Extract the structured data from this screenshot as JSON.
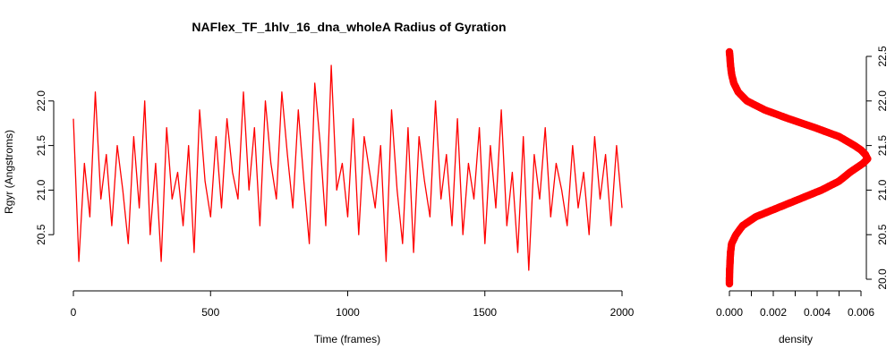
{
  "chart_data": [
    {
      "type": "line",
      "title": "NAFlex_TF_1hlv_16_dna_wholeA Radius of Gyration",
      "xlabel": "Time (frames)",
      "ylabel": "Rgyr (Angstroms)",
      "xlim": [
        0,
        2000
      ],
      "ylim": [
        20.0,
        22.5
      ],
      "xticks": [
        "0",
        "500",
        "1000",
        "1500",
        "2000"
      ],
      "yticks": [
        "20.5",
        "21.0",
        "21.5",
        "22.0"
      ],
      "series": [
        {
          "color": "#ff0000",
          "x": [
            0,
            20,
            40,
            60,
            80,
            100,
            120,
            140,
            160,
            180,
            200,
            220,
            240,
            260,
            280,
            300,
            320,
            340,
            360,
            380,
            400,
            420,
            440,
            460,
            480,
            500,
            520,
            540,
            560,
            580,
            600,
            620,
            640,
            660,
            680,
            700,
            720,
            740,
            760,
            780,
            800,
            820,
            840,
            860,
            880,
            900,
            920,
            940,
            960,
            980,
            1000,
            1020,
            1040,
            1060,
            1080,
            1100,
            1120,
            1140,
            1160,
            1180,
            1200,
            1220,
            1240,
            1260,
            1280,
            1300,
            1320,
            1340,
            1360,
            1380,
            1400,
            1420,
            1440,
            1460,
            1480,
            1500,
            1520,
            1540,
            1560,
            1580,
            1600,
            1620,
            1640,
            1660,
            1680,
            1700,
            1720,
            1740,
            1760,
            1780,
            1800,
            1820,
            1840,
            1860,
            1880,
            1900,
            1920,
            1940,
            1960,
            1980,
            2000
          ],
          "y": [
            21.8,
            20.2,
            21.3,
            20.7,
            22.1,
            20.9,
            21.4,
            20.6,
            21.5,
            21.0,
            20.4,
            21.6,
            20.8,
            22.0,
            20.5,
            21.3,
            20.2,
            21.7,
            20.9,
            21.2,
            20.6,
            21.5,
            20.3,
            21.9,
            21.1,
            20.7,
            21.6,
            20.8,
            21.8,
            21.2,
            20.9,
            22.1,
            21.0,
            21.7,
            20.6,
            22.0,
            21.3,
            20.9,
            22.1,
            21.4,
            20.8,
            21.9,
            21.1,
            20.4,
            22.2,
            21.5,
            20.6,
            22.4,
            21.0,
            21.3,
            20.7,
            21.8,
            20.5,
            21.6,
            21.2,
            20.8,
            21.5,
            20.2,
            21.9,
            21.0,
            20.4,
            21.7,
            20.3,
            21.6,
            21.1,
            20.7,
            22.0,
            20.9,
            21.4,
            20.6,
            21.8,
            20.5,
            21.3,
            20.9,
            21.7,
            20.4,
            21.5,
            20.8,
            21.9,
            20.6,
            21.2,
            20.3,
            21.6,
            20.1,
            21.4,
            20.9,
            21.7,
            20.7,
            21.3,
            21.0,
            20.6,
            21.5,
            20.8,
            21.2,
            20.5,
            21.6,
            20.9,
            21.4,
            20.6,
            21.5,
            20.8
          ]
        }
      ]
    },
    {
      "type": "line",
      "xlabel": "density",
      "xlim": [
        0,
        0.006
      ],
      "ylim": [
        20.0,
        22.5
      ],
      "xticks": [
        "0.000",
        "0.002",
        "0.004",
        "0.006"
      ],
      "yticks": [
        "20.0",
        "20.5",
        "21.0",
        "21.5",
        "22.0",
        "22.5"
      ],
      "series": [
        {
          "color": "#ff0000",
          "y": [
            22.55,
            22.5,
            22.4,
            22.3,
            22.2,
            22.1,
            22.0,
            21.9,
            21.8,
            21.7,
            21.6,
            21.5,
            21.45,
            21.4,
            21.35,
            21.3,
            21.2,
            21.1,
            21.0,
            20.9,
            20.8,
            20.7,
            20.6,
            20.5,
            20.4,
            20.3,
            20.2,
            20.1,
            20.0,
            19.95
          ],
          "x": [
            0.0,
            2e-05,
            5e-05,
            0.0001,
            0.0002,
            0.0004,
            0.0008,
            0.0016,
            0.0027,
            0.0039,
            0.005,
            0.0057,
            0.006,
            0.0062,
            0.0063,
            0.0061,
            0.0055,
            0.005,
            0.0042,
            0.0032,
            0.0022,
            0.0012,
            0.0006,
            0.0003,
            0.0001,
            5e-05,
            3e-05,
            1e-05,
            0.0,
            0.0
          ]
        }
      ]
    }
  ]
}
